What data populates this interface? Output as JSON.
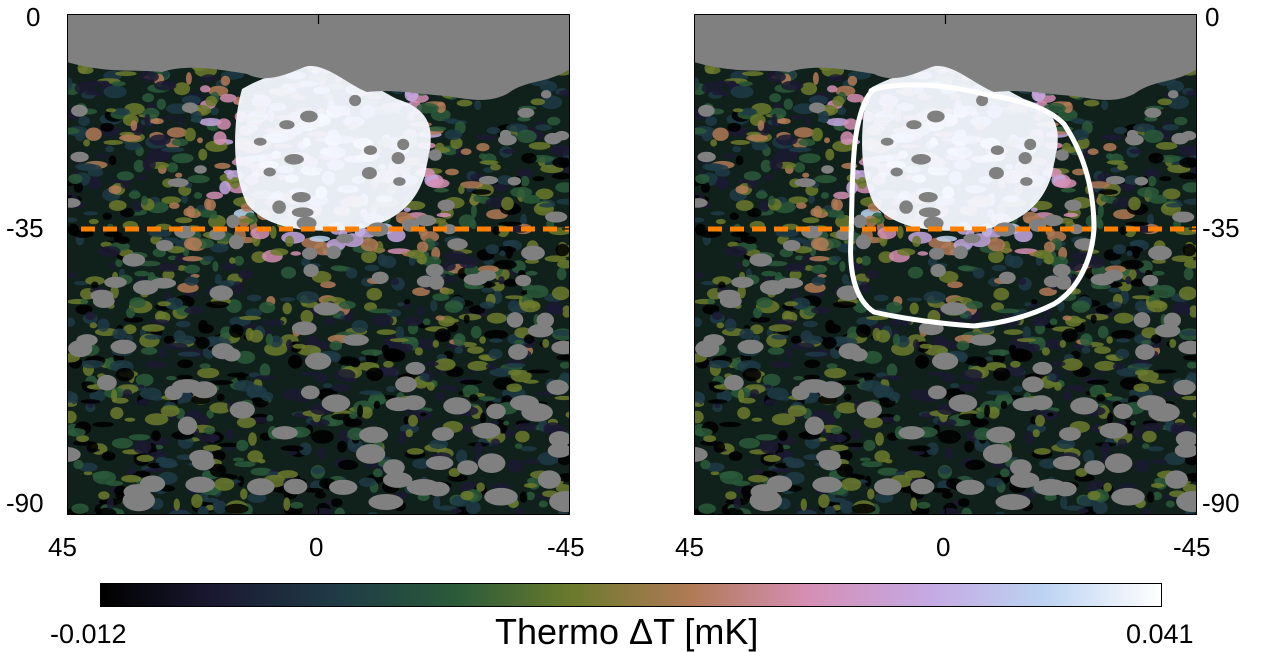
{
  "panels": [
    {
      "id": "left",
      "has_contour": false
    },
    {
      "id": "right",
      "has_contour": true
    }
  ],
  "axes": {
    "x_ticks": [
      "45",
      "0",
      "-45"
    ],
    "y_ticks": [
      "0",
      "-35",
      "-90"
    ]
  },
  "colorbar": {
    "min_label": "-0.012",
    "max_label": "0.041",
    "title": "Thermo ΔT [mK]",
    "colors": [
      "#000000",
      "#1b1a33",
      "#1f3b46",
      "#2a5a3a",
      "#6b7a2c",
      "#b07a56",
      "#d58fb4",
      "#c5a8e2",
      "#bcd3f2",
      "#ffffff"
    ]
  },
  "colors": {
    "mask_grey": "#808080",
    "dashed_line": "#ff8000",
    "contour": "#ffffff"
  }
}
